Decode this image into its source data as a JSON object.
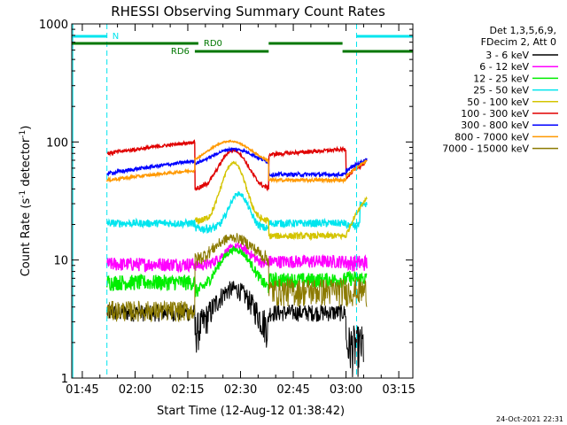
{
  "chart_data": {
    "type": "line",
    "title": "RHESSI Observing Summary Count Rates",
    "xlabel": "Start Time (12-Aug-12 01:38:42)",
    "ylabel_main": "Count Rate (s",
    "ylabel_sup1": "-1",
    "ylabel_mid": " detector",
    "ylabel_sup2": "-1",
    "ylabel_end": ")",
    "yscale": "log",
    "ylim": [
      1,
      1000
    ],
    "xlim_min": [
      102,
      199
    ],
    "x_ticks": [
      {
        "min": 105,
        "label": "01:45"
      },
      {
        "min": 120,
        "label": "02:00"
      },
      {
        "min": 135,
        "label": "02:15"
      },
      {
        "min": 150,
        "label": "02:30"
      },
      {
        "min": 165,
        "label": "02:45"
      },
      {
        "min": 180,
        "label": "03:00"
      },
      {
        "min": 195,
        "label": "03:15"
      }
    ],
    "y_ticks": [
      {
        "value": 1,
        "label": "1"
      },
      {
        "value": 10,
        "label": "10"
      },
      {
        "value": 100,
        "label": "100"
      },
      {
        "value": 1000,
        "label": "1000"
      }
    ],
    "legend_header": [
      "Det 1,3,5,6,9,",
      "FDecim 2, Att 0"
    ],
    "legend_position": "right",
    "series": [
      {
        "name": "3 - 6 keV",
        "color": "#000000"
      },
      {
        "name": "6 - 12 keV",
        "color": "#ff00ff"
      },
      {
        "name": "12 - 25 keV",
        "color": "#00ee00"
      },
      {
        "name": "25 - 50 keV",
        "color": "#00e5ee"
      },
      {
        "name": "50 - 100 keV",
        "color": "#d4c400"
      },
      {
        "name": "100 - 300 keV",
        "color": "#e00000"
      },
      {
        "name": "300 - 800 keV",
        "color": "#0000ff"
      },
      {
        "name": "800 - 7000 keV",
        "color": "#ff9900"
      },
      {
        "name": "7000 - 15000 keV",
        "color": "#8b7a00"
      }
    ],
    "annotations": {
      "night_label": "N",
      "rd0_label": "RD0",
      "rd6_label": "RD6",
      "night_intervals": [
        [
          102,
          112
        ],
        [
          183,
          199
        ]
      ],
      "rd0_intervals": [
        [
          102,
          138
        ],
        [
          158,
          179
        ]
      ],
      "rd6_intervals": [
        [
          137,
          158
        ],
        [
          179,
          199
        ]
      ]
    },
    "timestamp": "24-Oct-2021 22:31"
  }
}
